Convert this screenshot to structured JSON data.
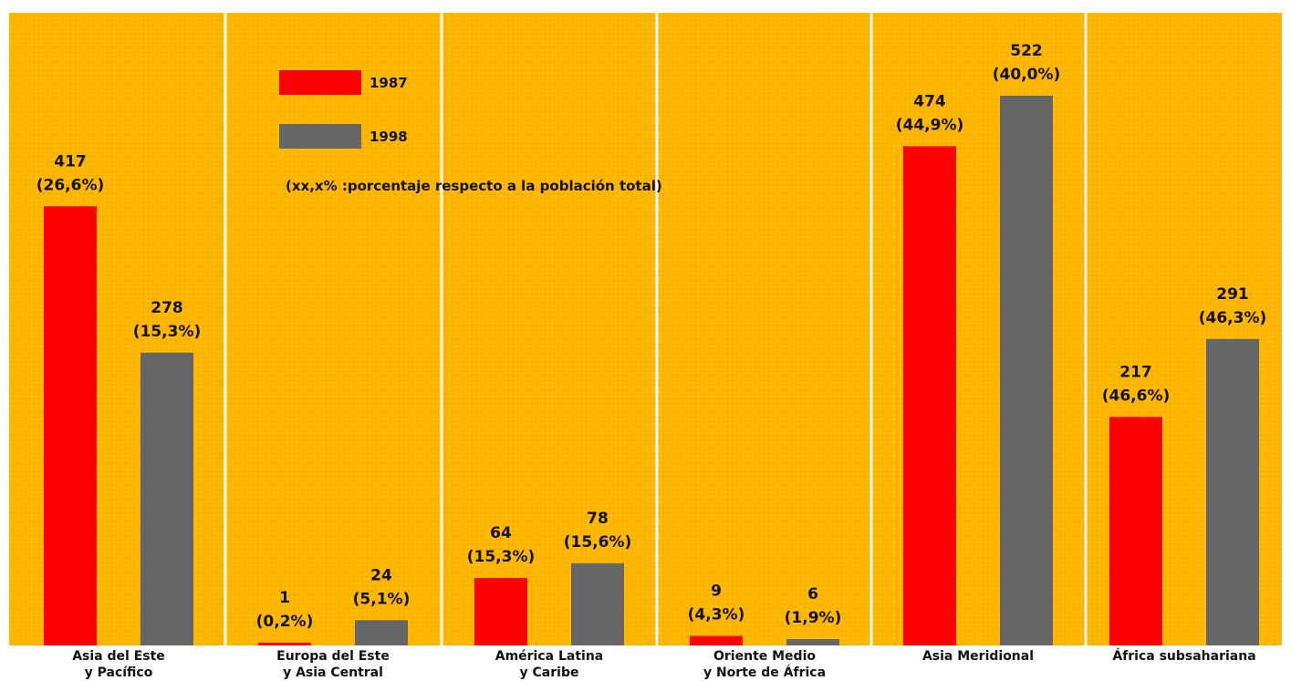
{
  "chart_data": {
    "type": "bar",
    "categories": [
      [
        "Asia del Este",
        "y Pacífico"
      ],
      [
        "Europa del Este",
        "y Asia Central"
      ],
      [
        "América Latina",
        "y Caribe"
      ],
      [
        "Oriente Medio",
        "y Norte de África"
      ],
      [
        "Asia Meridional"
      ],
      [
        "África subsahariana"
      ]
    ],
    "series": [
      {
        "name": "1987",
        "color": "#ff0000",
        "values": [
          417,
          1,
          64,
          9,
          474,
          217
        ],
        "percent_labels": [
          "(26,6%)",
          "(0,2%)",
          "(15,3%)",
          "(4,3%)",
          "(44,9%)",
          "(46,6%)"
        ]
      },
      {
        "name": "1998",
        "color": "#666666",
        "values": [
          278,
          24,
          78,
          6,
          522,
          291
        ],
        "percent_labels": [
          "(15,3%)",
          "(5,1%)",
          "(15,6%)",
          "(1,9%)",
          "(40,0%)",
          "(46,3%)"
        ]
      }
    ],
    "annotation": "(xx,x% :porcentaje respecto a la población total)",
    "background_color": "#ffb800",
    "legend_placement": "top-left",
    "ylim": [
      0,
      580
    ],
    "grid": false
  }
}
